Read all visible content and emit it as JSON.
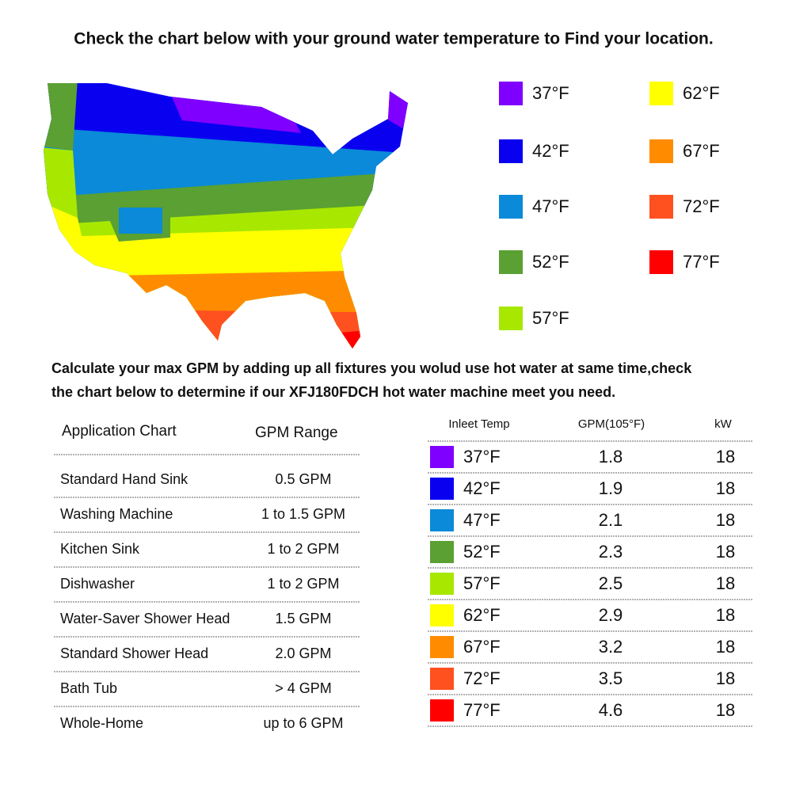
{
  "heading": "Check the chart below with your ground water temperature to Find your location.",
  "legend": [
    {
      "label": "37°F",
      "color": "#8000ff"
    },
    {
      "label": "42°F",
      "color": "#0a00f0"
    },
    {
      "label": "47°F",
      "color": "#0a8ad8"
    },
    {
      "label": "52°F",
      "color": "#5aa032"
    },
    {
      "label": "57°F",
      "color": "#a8e800"
    },
    {
      "label": "62°F",
      "color": "#ffff00"
    },
    {
      "label": "67°F",
      "color": "#ff8c00"
    },
    {
      "label": "72°F",
      "color": "#ff5020"
    },
    {
      "label": "77°F",
      "color": "#ff0000"
    }
  ],
  "instruction": [
    "Calculate your max GPM by adding up all fixtures you wolud use hot water at same time,check",
    "the chart below to determine if our XFJ180FDCH hot water machine meet you need."
  ],
  "application_table": {
    "headers": [
      "Application Chart",
      "GPM Range"
    ],
    "rows": [
      [
        "Standard Hand Sink",
        "0.5 GPM"
      ],
      [
        "Washing Machine",
        "1 to 1.5 GPM"
      ],
      [
        "Kitchen Sink",
        "1 to 2 GPM"
      ],
      [
        "Dishwasher",
        "1 to 2 GPM"
      ],
      [
        "Water-Saver Shower Head",
        "1.5 GPM"
      ],
      [
        "Standard Shower Head",
        "2.0 GPM"
      ],
      [
        "Bath Tub",
        "> 4 GPM"
      ],
      [
        "Whole-Home",
        "up to 6 GPM"
      ]
    ]
  },
  "temp_table": {
    "headers": [
      "Inleet Temp",
      "GPM(105°F)",
      "kW"
    ],
    "rows": [
      {
        "color": "#8000ff",
        "temp": "37°F",
        "gpm": 1.8,
        "kw": 18
      },
      {
        "color": "#0a00f0",
        "temp": "42°F",
        "gpm": 1.9,
        "kw": 18
      },
      {
        "color": "#0a8ad8",
        "temp": "47°F",
        "gpm": 2.1,
        "kw": 18
      },
      {
        "color": "#5aa032",
        "temp": "52°F",
        "gpm": 2.3,
        "kw": 18
      },
      {
        "color": "#a8e800",
        "temp": "57°F",
        "gpm": 2.5,
        "kw": 18
      },
      {
        "color": "#ffff00",
        "temp": "62°F",
        "gpm": 2.9,
        "kw": 18
      },
      {
        "color": "#ff8c00",
        "temp": "67°F",
        "gpm": 3.2,
        "kw": 18
      },
      {
        "color": "#ff5020",
        "temp": "72°F",
        "gpm": 3.5,
        "kw": 18
      },
      {
        "color": "#ff0000",
        "temp": "77°F",
        "gpm": 4.6,
        "kw": 18
      }
    ]
  }
}
